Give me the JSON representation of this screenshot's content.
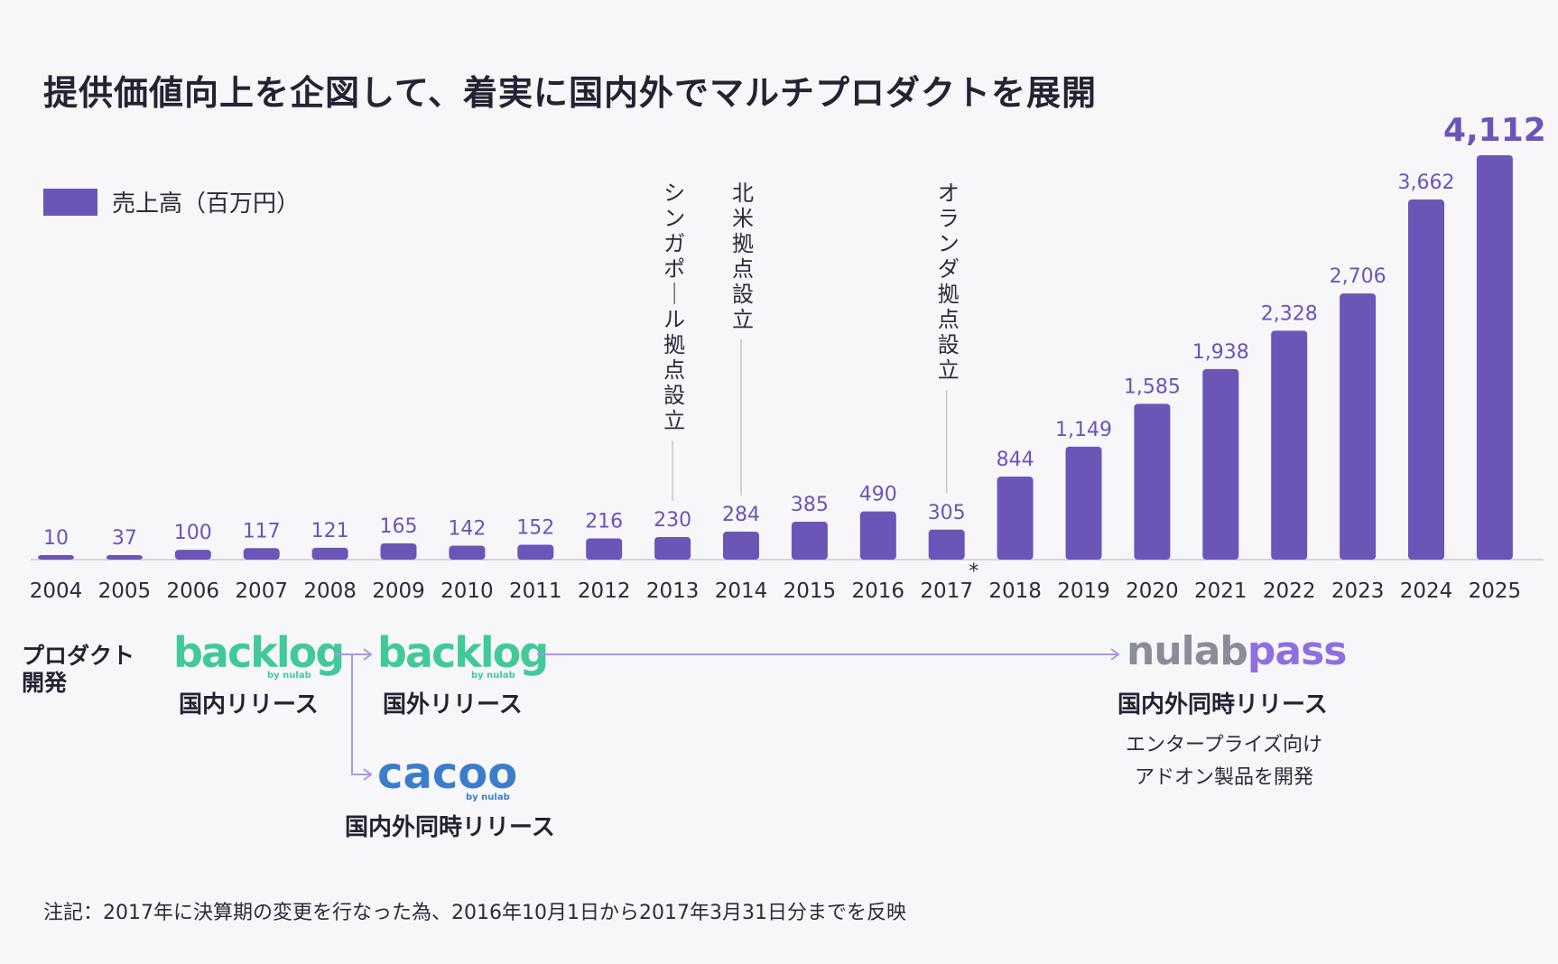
{
  "title": "提供価値向上を企図して、着実に国内外でマルチプロダクトを展開",
  "legend": {
    "label": "売上高（百万円）",
    "color": "#6b55b7"
  },
  "chart_data": {
    "type": "bar",
    "title": "提供価値向上を企図して、着実に国内外でマルチプロダクトを展開",
    "categories": [
      "2004",
      "2005",
      "2006",
      "2007",
      "2008",
      "2009",
      "2010",
      "2011",
      "2012",
      "2013",
      "2014",
      "2015",
      "2016",
      "2017",
      "2018",
      "2019",
      "2020",
      "2021",
      "2022",
      "2023",
      "2024",
      "2025"
    ],
    "series": [
      {
        "name": "売上高（百万円）",
        "values": [
          10,
          37,
          100,
          117,
          121,
          165,
          142,
          152,
          216,
          230,
          284,
          385,
          490,
          305,
          844,
          1149,
          1585,
          1938,
          2328,
          2706,
          3662,
          4112
        ],
        "value_labels": [
          "10",
          "37",
          "100",
          "117",
          "121",
          "165",
          "142",
          "152",
          "216",
          "230",
          "284",
          "385",
          "490",
          "305",
          "844",
          "1,149",
          "1,585",
          "1,938",
          "2,328",
          "2,706",
          "3,662",
          "4,112"
        ]
      }
    ],
    "ylim": [
      0,
      4112
    ],
    "xlabel": "",
    "ylabel": "",
    "highlight_last": true,
    "bar_color": "#6b55b7",
    "label_color": "#6b55b7",
    "annotations": [
      {
        "category": "2013",
        "text": "シンガポール拠点設立"
      },
      {
        "category": "2014",
        "text": "北米拠点設立"
      },
      {
        "category": "2017",
        "text": "オランダ拠点設立"
      }
    ],
    "asterisk": {
      "category": "2017",
      "text": "*"
    }
  },
  "products": {
    "heading": "プロダクト開発",
    "backlog_domestic": {
      "logo": "backlog",
      "byline": "by nulab",
      "label": "国内リリース"
    },
    "backlog_overseas": {
      "logo": "backlog",
      "byline": "by nulab",
      "label": "国外リリース"
    },
    "cacoo": {
      "logo": "cacoo",
      "byline": "by nulab",
      "label": "国内外同時リリース"
    },
    "nulabpass": {
      "logo_part1": "nulab",
      "logo_part2": "pass",
      "label": "国内外同時リリース",
      "note_line1": "エンタープライズ向け",
      "note_line2": "アドオン製品を開発"
    }
  },
  "footnote": "注記：2017年に決算期の変更を行なった為、2016年10月1日から2017年3月31日分までを反映"
}
